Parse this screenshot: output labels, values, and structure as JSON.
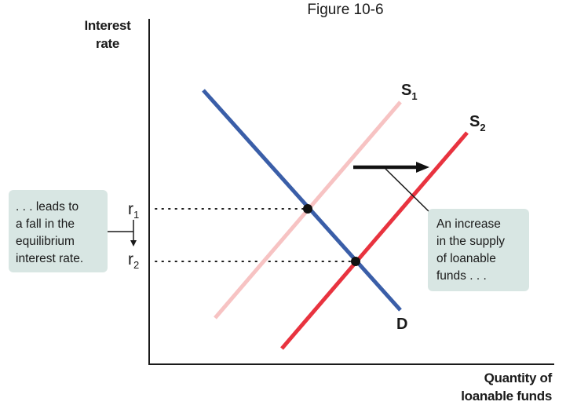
{
  "figure_title": "Figure 10-6",
  "axes": {
    "y_label_lines": [
      "Interest",
      "rate"
    ],
    "x_label_lines": [
      "Quantity of",
      "loanable funds"
    ]
  },
  "curves": {
    "supply_1": {
      "letter": "S",
      "subscript": "1",
      "color": "#f7c3c3"
    },
    "supply_2": {
      "letter": "S",
      "subscript": "2",
      "color": "#e8333f"
    },
    "demand": {
      "letter": "D",
      "color": "#3a5ea8"
    }
  },
  "rates": {
    "r1": {
      "letter": "r",
      "subscript": "1"
    },
    "r2": {
      "letter": "r",
      "subscript": "2"
    }
  },
  "callouts": {
    "left": {
      "lines": [
        ". . . leads to",
        "a fall in the",
        "equilibrium",
        "interest rate."
      ]
    },
    "right": {
      "lines": [
        "An increase",
        "in the supply",
        "of loanable",
        "funds . . ."
      ]
    }
  },
  "colors": {
    "axis": "#1a1a1a",
    "callout_bg": "#d8e6e3",
    "equilibrium_point": "#111111"
  }
}
